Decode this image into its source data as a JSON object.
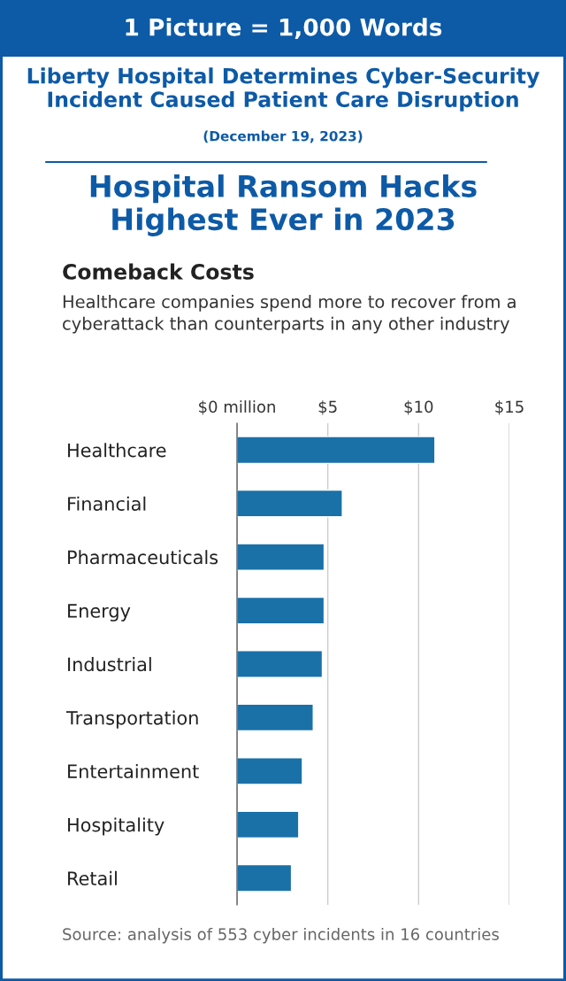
{
  "chart_data": {
    "type": "bar",
    "orientation": "horizontal",
    "title": "Comeback Costs",
    "subtitle": "Healthcare companies spend more to recover from a cyberattack than counterparts in any other industry",
    "annotations": [
      "1 Picture = 1,000 Words",
      "Liberty Hospital Determines Cyber-Security Incident Caused Patient Care Disruption",
      "(December 19, 2023)",
      "Hospital Ransom Hacks Highest Ever in 2023",
      "Source: analysis of 553 cyber incidents in 16 countries"
    ],
    "categories": [
      "Healthcare",
      "Financial",
      "Pharmaceuticals",
      "Energy",
      "Industrial",
      "Transportation",
      "Entertainment",
      "Hospitality",
      "Retail"
    ],
    "values": [
      10.9,
      5.8,
      4.8,
      4.8,
      4.7,
      4.2,
      3.6,
      3.4,
      3.0
    ],
    "color": "#1a71a8",
    "xlim": [
      0,
      15
    ],
    "xticks": [
      {
        "value": 0,
        "label": "$0 million"
      },
      {
        "value": 5,
        "label": "$5"
      },
      {
        "value": 10,
        "label": "$10"
      },
      {
        "value": 15,
        "label": "$15"
      }
    ],
    "grid": "x"
  }
}
